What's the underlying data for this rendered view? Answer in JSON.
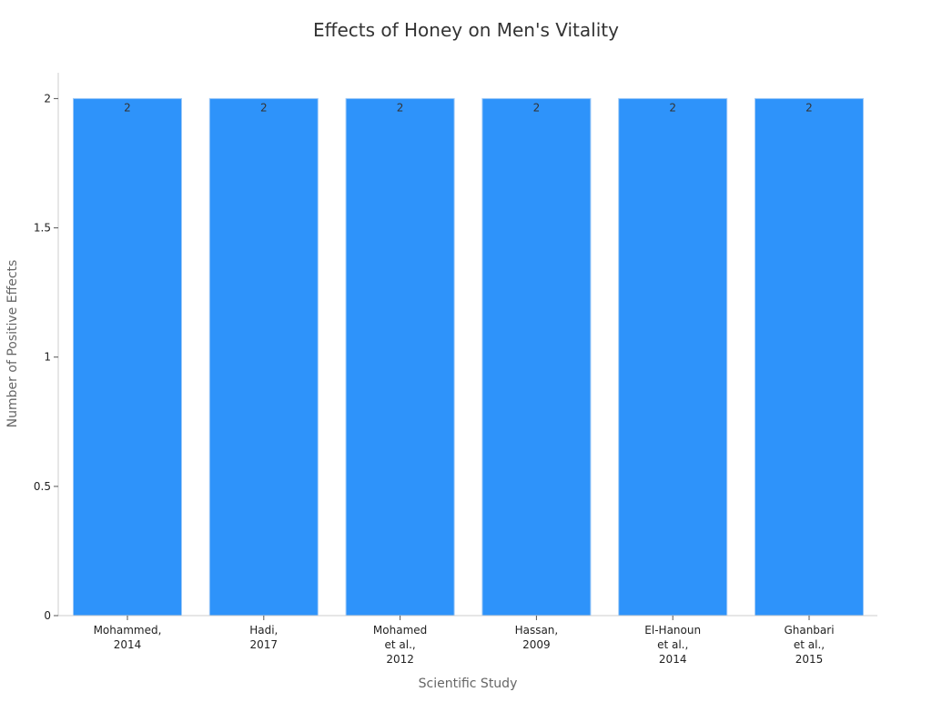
{
  "chart_data": {
    "type": "bar",
    "title": "Effects of Honey on Men's Vitality",
    "xlabel": "Scientific Study",
    "ylabel": "Number of Positive Effects",
    "categories": [
      [
        "Mohammed,",
        "2014"
      ],
      [
        "Hadi,",
        "2017"
      ],
      [
        "Mohamed",
        "et al.,",
        "2012"
      ],
      [
        "Hassan,",
        "2009"
      ],
      [
        "El-Hanoun",
        "et al.,",
        "2014"
      ],
      [
        "Ghanbari",
        "et al.,",
        "2015"
      ]
    ],
    "values": [
      2,
      2,
      2,
      2,
      2,
      2
    ],
    "data_labels": [
      "2",
      "2",
      "2",
      "2",
      "2",
      "2"
    ],
    "ylim": [
      0,
      2.1
    ],
    "y_ticks": [
      0,
      0.5,
      1,
      1.5,
      2
    ],
    "y_tick_labels": [
      "0",
      "0.5",
      "1",
      "1.5",
      "2"
    ],
    "grid": false,
    "legend": "none",
    "bar_color": "#2e93fa"
  }
}
